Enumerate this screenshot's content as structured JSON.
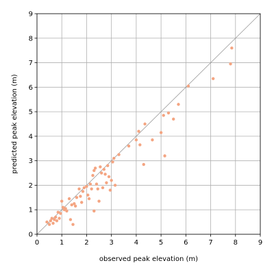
{
  "chart_data": {
    "type": "scatter",
    "title": "",
    "xlabel": "observed peak elevation (m)",
    "ylabel": "predicted peak elevation (m)",
    "xlim": [
      0,
      9
    ],
    "ylim": [
      0,
      9
    ],
    "xticks": [
      0,
      1,
      2,
      3,
      4,
      5,
      6,
      7,
      8,
      9
    ],
    "yticks": [
      0,
      1,
      2,
      3,
      4,
      5,
      6,
      7,
      8,
      9
    ],
    "grid": true,
    "reference_line": "y = x",
    "colors": {
      "points": "#f4a582",
      "reference_line": "#999999",
      "grid": "#b0b0b0"
    },
    "series": [
      {
        "points": [
          [
            0.4,
            0.5
          ],
          [
            0.5,
            0.4
          ],
          [
            0.55,
            0.55
          ],
          [
            0.6,
            0.65
          ],
          [
            0.65,
            0.45
          ],
          [
            0.7,
            0.6
          ],
          [
            0.75,
            0.7
          ],
          [
            0.8,
            0.55
          ],
          [
            0.85,
            0.9
          ],
          [
            0.9,
            0.65
          ],
          [
            0.95,
            0.85
          ],
          [
            1.0,
            1.35
          ],
          [
            1.05,
            1.1
          ],
          [
            1.1,
            1.0
          ],
          [
            1.15,
            1.05
          ],
          [
            1.2,
            0.95
          ],
          [
            1.3,
            1.45
          ],
          [
            1.35,
            0.6
          ],
          [
            1.4,
            1.2
          ],
          [
            1.45,
            0.4
          ],
          [
            1.5,
            1.25
          ],
          [
            1.55,
            1.15
          ],
          [
            1.6,
            1.5
          ],
          [
            1.7,
            1.85
          ],
          [
            1.75,
            1.55
          ],
          [
            1.8,
            1.3
          ],
          [
            1.85,
            1.75
          ],
          [
            1.9,
            1.9
          ],
          [
            2.0,
            1.95
          ],
          [
            2.05,
            1.6
          ],
          [
            2.1,
            1.45
          ],
          [
            2.15,
            2.05
          ],
          [
            2.2,
            1.85
          ],
          [
            2.25,
            2.4
          ],
          [
            2.3,
            2.6
          ],
          [
            2.3,
            0.95
          ],
          [
            2.35,
            2.7
          ],
          [
            2.4,
            2.05
          ],
          [
            2.45,
            1.85
          ],
          [
            2.5,
            1.35
          ],
          [
            2.55,
            2.75
          ],
          [
            2.6,
            2.5
          ],
          [
            2.65,
            1.9
          ],
          [
            2.7,
            2.65
          ],
          [
            2.75,
            2.45
          ],
          [
            2.8,
            2.1
          ],
          [
            2.85,
            2.8
          ],
          [
            2.9,
            2.35
          ],
          [
            2.95,
            1.8
          ],
          [
            3.0,
            2.2
          ],
          [
            3.05,
            2.95
          ],
          [
            3.1,
            3.1
          ],
          [
            3.15,
            2.0
          ],
          [
            3.3,
            3.25
          ],
          [
            3.7,
            3.6
          ],
          [
            4.0,
            3.85
          ],
          [
            4.1,
            4.2
          ],
          [
            4.15,
            3.65
          ],
          [
            4.3,
            2.85
          ],
          [
            4.35,
            4.5
          ],
          [
            4.65,
            3.85
          ],
          [
            5.0,
            4.15
          ],
          [
            5.1,
            4.85
          ],
          [
            5.15,
            3.2
          ],
          [
            5.3,
            4.95
          ],
          [
            5.5,
            4.7
          ],
          [
            5.7,
            5.3
          ],
          [
            6.1,
            6.05
          ],
          [
            7.1,
            6.35
          ],
          [
            7.8,
            6.95
          ],
          [
            7.85,
            7.6
          ]
        ]
      }
    ]
  }
}
